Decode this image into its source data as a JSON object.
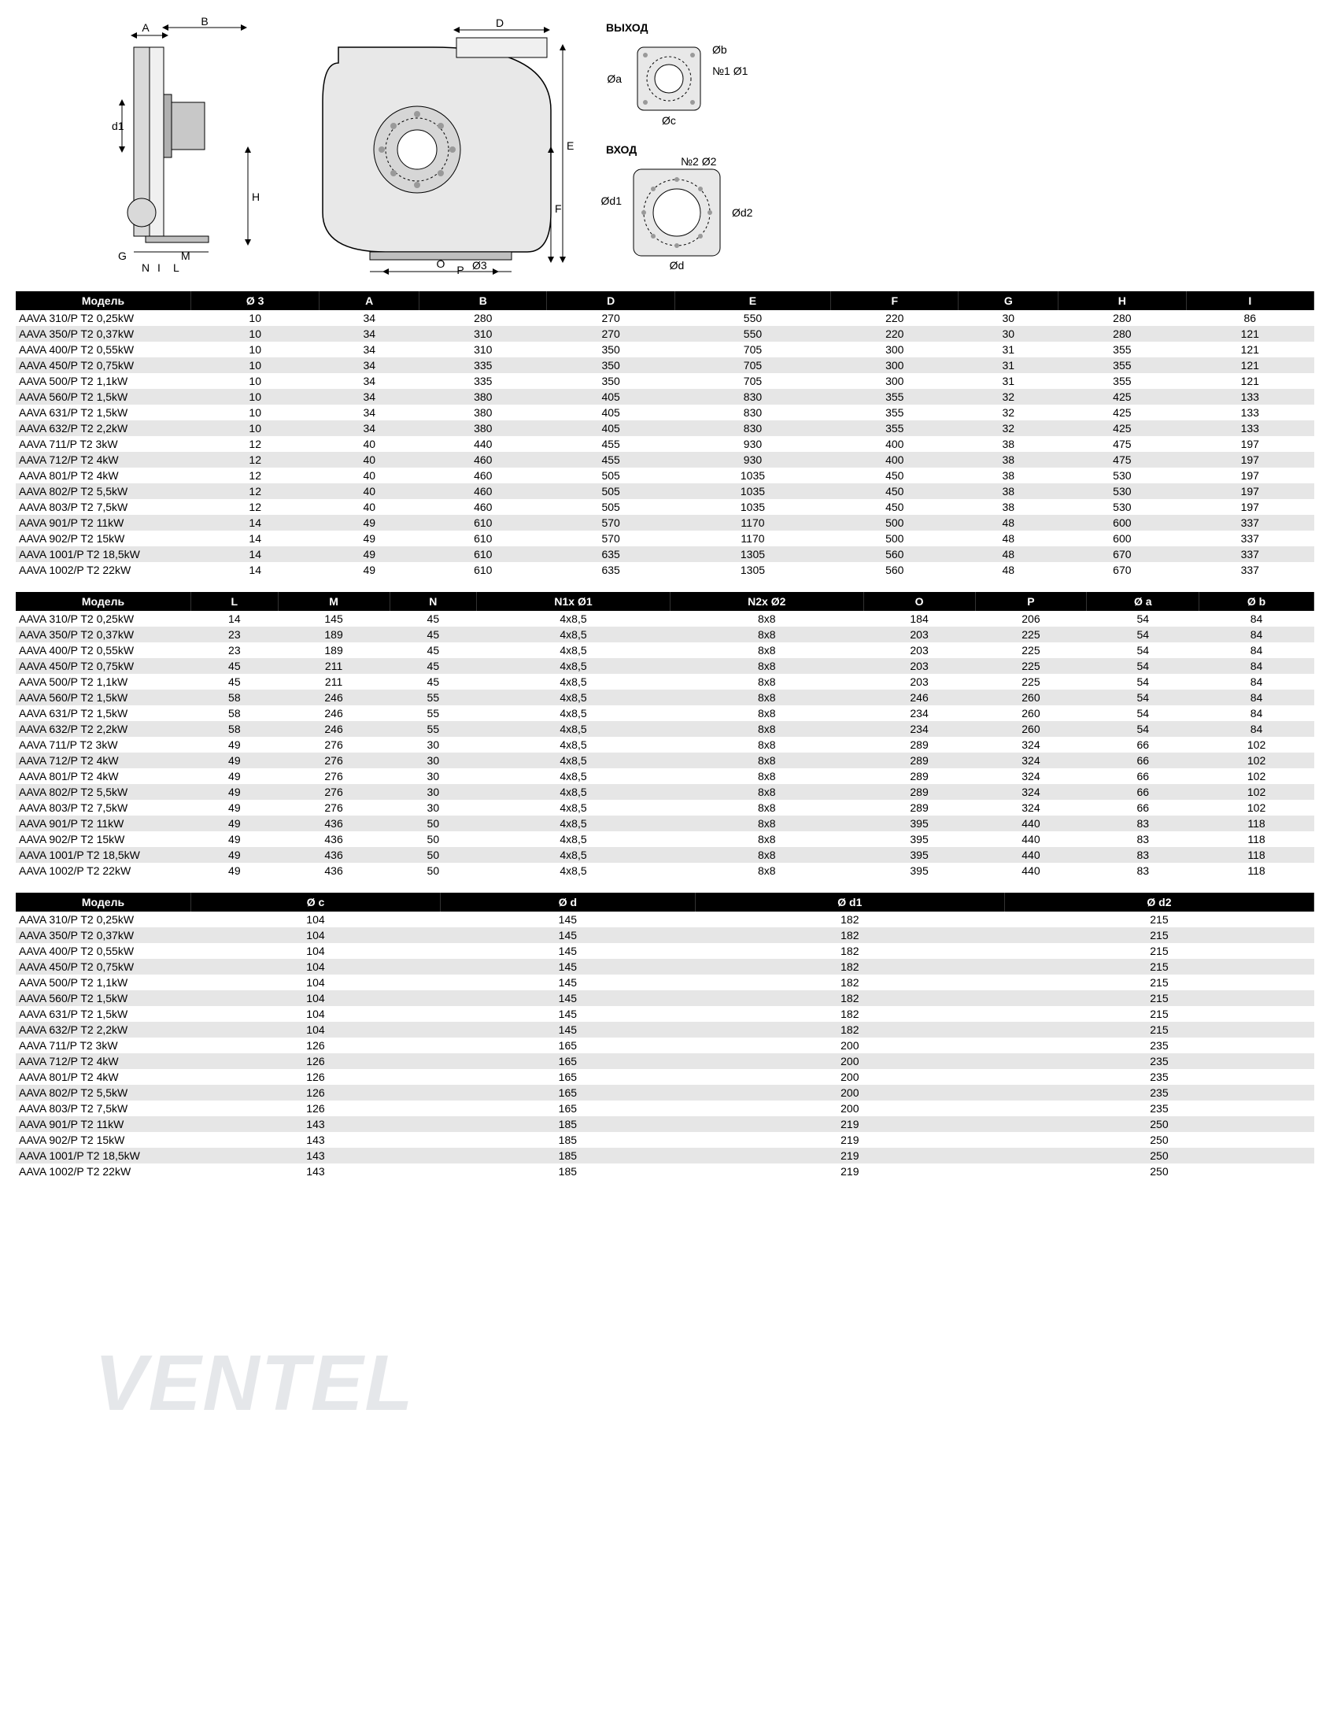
{
  "diagrams": {
    "outlet_label": "ВЫХОД",
    "inlet_label": "ВХОД",
    "labels": [
      "A",
      "B",
      "D",
      "E",
      "F",
      "G",
      "H",
      "I",
      "L",
      "M",
      "N",
      "O",
      "P",
      "d1",
      "Ø3",
      "Øa",
      "Øb",
      "Øc",
      "Ød",
      "Ød1",
      "Ød2",
      "№1 Ø1",
      "№2 Ø2"
    ]
  },
  "watermark": "VENTEL",
  "table1": {
    "headers": [
      "Модель",
      "Ø 3",
      "A",
      "B",
      "D",
      "E",
      "F",
      "G",
      "H",
      "I"
    ],
    "rows": [
      [
        "AAVA 310/P T2 0,25kW",
        "10",
        "34",
        "280",
        "270",
        "550",
        "220",
        "30",
        "280",
        "86"
      ],
      [
        "AAVA 350/P T2 0,37kW",
        "10",
        "34",
        "310",
        "270",
        "550",
        "220",
        "30",
        "280",
        "121"
      ],
      [
        "AAVA 400/P T2 0,55kW",
        "10",
        "34",
        "310",
        "350",
        "705",
        "300",
        "31",
        "355",
        "121"
      ],
      [
        "AAVA 450/P T2 0,75kW",
        "10",
        "34",
        "335",
        "350",
        "705",
        "300",
        "31",
        "355",
        "121"
      ],
      [
        "AAVA 500/P T2 1,1kW",
        "10",
        "34",
        "335",
        "350",
        "705",
        "300",
        "31",
        "355",
        "121"
      ],
      [
        "AAVA 560/P T2 1,5kW",
        "10",
        "34",
        "380",
        "405",
        "830",
        "355",
        "32",
        "425",
        "133"
      ],
      [
        "AAVA 631/P T2 1,5kW",
        "10",
        "34",
        "380",
        "405",
        "830",
        "355",
        "32",
        "425",
        "133"
      ],
      [
        "AAVA 632/P T2 2,2kW",
        "10",
        "34",
        "380",
        "405",
        "830",
        "355",
        "32",
        "425",
        "133"
      ],
      [
        "AAVA 711/P T2 3kW",
        "12",
        "40",
        "440",
        "455",
        "930",
        "400",
        "38",
        "475",
        "197"
      ],
      [
        "AAVA 712/P T2 4kW",
        "12",
        "40",
        "460",
        "455",
        "930",
        "400",
        "38",
        "475",
        "197"
      ],
      [
        "AAVA 801/P T2 4kW",
        "12",
        "40",
        "460",
        "505",
        "1035",
        "450",
        "38",
        "530",
        "197"
      ],
      [
        "AAVA 802/P T2 5,5kW",
        "12",
        "40",
        "460",
        "505",
        "1035",
        "450",
        "38",
        "530",
        "197"
      ],
      [
        "AAVA 803/P T2 7,5kW",
        "12",
        "40",
        "460",
        "505",
        "1035",
        "450",
        "38",
        "530",
        "197"
      ],
      [
        "AAVA 901/P T2 11kW",
        "14",
        "49",
        "610",
        "570",
        "1170",
        "500",
        "48",
        "600",
        "337"
      ],
      [
        "AAVA 902/P T2 15kW",
        "14",
        "49",
        "610",
        "570",
        "1170",
        "500",
        "48",
        "600",
        "337"
      ],
      [
        "AAVA 1001/P T2 18,5kW",
        "14",
        "49",
        "610",
        "635",
        "1305",
        "560",
        "48",
        "670",
        "337"
      ],
      [
        "AAVA 1002/P T2 22kW",
        "14",
        "49",
        "610",
        "635",
        "1305",
        "560",
        "48",
        "670",
        "337"
      ]
    ]
  },
  "table2": {
    "headers": [
      "Модель",
      "L",
      "M",
      "N",
      "N1x Ø1",
      "N2x Ø2",
      "O",
      "P",
      "Ø a",
      "Ø b"
    ],
    "rows": [
      [
        "AAVA 310/P T2 0,25kW",
        "14",
        "145",
        "45",
        "4x8,5",
        "8x8",
        "184",
        "206",
        "54",
        "84"
      ],
      [
        "AAVA 350/P T2 0,37kW",
        "23",
        "189",
        "45",
        "4x8,5",
        "8x8",
        "203",
        "225",
        "54",
        "84"
      ],
      [
        "AAVA 400/P T2 0,55kW",
        "23",
        "189",
        "45",
        "4x8,5",
        "8x8",
        "203",
        "225",
        "54",
        "84"
      ],
      [
        "AAVA 450/P T2 0,75kW",
        "45",
        "211",
        "45",
        "4x8,5",
        "8x8",
        "203",
        "225",
        "54",
        "84"
      ],
      [
        "AAVA 500/P T2 1,1kW",
        "45",
        "211",
        "45",
        "4x8,5",
        "8x8",
        "203",
        "225",
        "54",
        "84"
      ],
      [
        "AAVA 560/P T2 1,5kW",
        "58",
        "246",
        "55",
        "4x8,5",
        "8x8",
        "246",
        "260",
        "54",
        "84"
      ],
      [
        "AAVA 631/P T2 1,5kW",
        "58",
        "246",
        "55",
        "4x8,5",
        "8x8",
        "234",
        "260",
        "54",
        "84"
      ],
      [
        "AAVA 632/P T2 2,2kW",
        "58",
        "246",
        "55",
        "4x8,5",
        "8x8",
        "234",
        "260",
        "54",
        "84"
      ],
      [
        "AAVA 711/P T2 3kW",
        "49",
        "276",
        "30",
        "4x8,5",
        "8x8",
        "289",
        "324",
        "66",
        "102"
      ],
      [
        "AAVA 712/P T2 4kW",
        "49",
        "276",
        "30",
        "4x8,5",
        "8x8",
        "289",
        "324",
        "66",
        "102"
      ],
      [
        "AAVA 801/P T2 4kW",
        "49",
        "276",
        "30",
        "4x8,5",
        "8x8",
        "289",
        "324",
        "66",
        "102"
      ],
      [
        "AAVA 802/P T2 5,5kW",
        "49",
        "276",
        "30",
        "4x8,5",
        "8x8",
        "289",
        "324",
        "66",
        "102"
      ],
      [
        "AAVA 803/P T2 7,5kW",
        "49",
        "276",
        "30",
        "4x8,5",
        "8x8",
        "289",
        "324",
        "66",
        "102"
      ],
      [
        "AAVA 901/P T2 11kW",
        "49",
        "436",
        "50",
        "4x8,5",
        "8x8",
        "395",
        "440",
        "83",
        "118"
      ],
      [
        "AAVA 902/P T2 15kW",
        "49",
        "436",
        "50",
        "4x8,5",
        "8x8",
        "395",
        "440",
        "83",
        "118"
      ],
      [
        "AAVA 1001/P T2 18,5kW",
        "49",
        "436",
        "50",
        "4x8,5",
        "8x8",
        "395",
        "440",
        "83",
        "118"
      ],
      [
        "AAVA 1002/P T2 22kW",
        "49",
        "436",
        "50",
        "4x8,5",
        "8x8",
        "395",
        "440",
        "83",
        "118"
      ]
    ]
  },
  "table3": {
    "headers": [
      "Модель",
      "Ø c",
      "Ø d",
      "Ø d1",
      "Ø d2"
    ],
    "rows": [
      [
        "AAVA 310/P T2 0,25kW",
        "104",
        "145",
        "182",
        "215"
      ],
      [
        "AAVA 350/P T2 0,37kW",
        "104",
        "145",
        "182",
        "215"
      ],
      [
        "AAVA 400/P T2 0,55kW",
        "104",
        "145",
        "182",
        "215"
      ],
      [
        "AAVA 450/P T2 0,75kW",
        "104",
        "145",
        "182",
        "215"
      ],
      [
        "AAVA 500/P T2 1,1kW",
        "104",
        "145",
        "182",
        "215"
      ],
      [
        "AAVA 560/P T2 1,5kW",
        "104",
        "145",
        "182",
        "215"
      ],
      [
        "AAVA 631/P T2 1,5kW",
        "104",
        "145",
        "182",
        "215"
      ],
      [
        "AAVA 632/P T2 2,2kW",
        "104",
        "145",
        "182",
        "215"
      ],
      [
        "AAVA 711/P T2 3kW",
        "126",
        "165",
        "200",
        "235"
      ],
      [
        "AAVA 712/P T2 4kW",
        "126",
        "165",
        "200",
        "235"
      ],
      [
        "AAVA 801/P T2 4kW",
        "126",
        "165",
        "200",
        "235"
      ],
      [
        "AAVA 802/P T2 5,5kW",
        "126",
        "165",
        "200",
        "235"
      ],
      [
        "AAVA 803/P T2 7,5kW",
        "126",
        "165",
        "200",
        "235"
      ],
      [
        "AAVA 901/P T2 11kW",
        "143",
        "185",
        "219",
        "250"
      ],
      [
        "AAVA 902/P T2 15kW",
        "143",
        "185",
        "219",
        "250"
      ],
      [
        "AAVA 1001/P T2 18,5kW",
        "143",
        "185",
        "219",
        "250"
      ],
      [
        "AAVA 1002/P T2 22kW",
        "143",
        "185",
        "219",
        "250"
      ]
    ]
  }
}
